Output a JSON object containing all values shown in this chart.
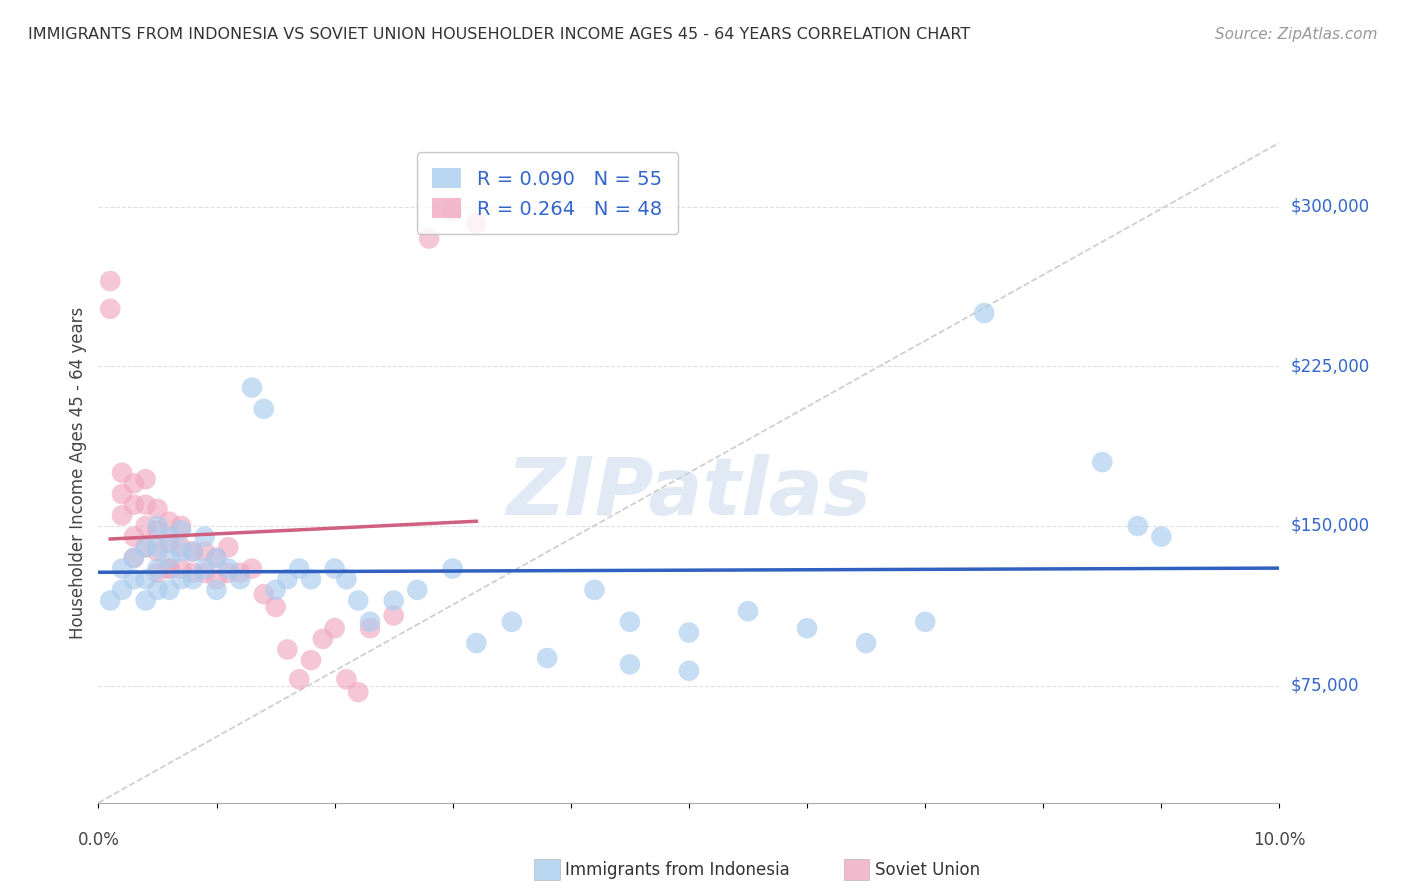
{
  "title": "IMMIGRANTS FROM INDONESIA VS SOVIET UNION HOUSEHOLDER INCOME AGES 45 - 64 YEARS CORRELATION CHART",
  "source": "Source: ZipAtlas.com",
  "ylabel": "Householder Income Ages 45 - 64 years",
  "xlim": [
    0.0,
    0.1
  ],
  "ylim": [
    20000,
    330000
  ],
  "ytick_positions": [
    75000,
    150000,
    225000,
    300000
  ],
  "ytick_labels": [
    "$75,000",
    "$150,000",
    "$225,000",
    "$300,000"
  ],
  "watermark": "ZIPatlas",
  "indonesia_color": "#aaccee",
  "soviet_color": "#f0a8c0",
  "indonesia_line_color": "#3060c0",
  "soviet_line_color": "#d06080",
  "text_color": "#3366cc",
  "background_color": "#ffffff",
  "grid_color": "#dddddd",
  "indonesia_x": [
    0.001,
    0.002,
    0.002,
    0.003,
    0.003,
    0.004,
    0.004,
    0.004,
    0.005,
    0.005,
    0.005,
    0.005,
    0.006,
    0.006,
    0.006,
    0.007,
    0.007,
    0.007,
    0.008,
    0.008,
    0.009,
    0.009,
    0.01,
    0.01,
    0.011,
    0.012,
    0.013,
    0.014,
    0.015,
    0.016,
    0.017,
    0.018,
    0.02,
    0.021,
    0.022,
    0.023,
    0.025,
    0.027,
    0.03,
    0.032,
    0.035,
    0.038,
    0.042,
    0.045,
    0.05,
    0.055,
    0.06,
    0.065,
    0.07,
    0.075,
    0.045,
    0.05,
    0.085,
    0.088,
    0.09
  ],
  "indonesia_y": [
    115000,
    120000,
    130000,
    125000,
    135000,
    115000,
    125000,
    140000,
    120000,
    130000,
    140000,
    150000,
    120000,
    135000,
    145000,
    125000,
    138000,
    148000,
    125000,
    138000,
    130000,
    145000,
    120000,
    135000,
    130000,
    125000,
    215000,
    205000,
    120000,
    125000,
    130000,
    125000,
    130000,
    125000,
    115000,
    105000,
    115000,
    120000,
    130000,
    95000,
    105000,
    88000,
    120000,
    105000,
    100000,
    110000,
    102000,
    95000,
    105000,
    250000,
    85000,
    82000,
    180000,
    150000,
    145000
  ],
  "soviet_x": [
    0.001,
    0.001,
    0.002,
    0.002,
    0.002,
    0.003,
    0.003,
    0.003,
    0.003,
    0.004,
    0.004,
    0.004,
    0.004,
    0.005,
    0.005,
    0.005,
    0.005,
    0.006,
    0.006,
    0.006,
    0.006,
    0.007,
    0.007,
    0.007,
    0.008,
    0.008,
    0.009,
    0.009,
    0.01,
    0.01,
    0.011,
    0.011,
    0.012,
    0.013,
    0.014,
    0.015,
    0.016,
    0.017,
    0.018,
    0.019,
    0.02,
    0.021,
    0.022,
    0.023,
    0.025,
    0.028,
    0.03,
    0.032
  ],
  "soviet_y": [
    265000,
    252000,
    155000,
    165000,
    175000,
    135000,
    145000,
    160000,
    170000,
    140000,
    150000,
    160000,
    172000,
    128000,
    138000,
    148000,
    158000,
    130000,
    142000,
    152000,
    130000,
    140000,
    150000,
    130000,
    128000,
    138000,
    128000,
    138000,
    125000,
    135000,
    128000,
    140000,
    128000,
    130000,
    118000,
    112000,
    92000,
    78000,
    87000,
    97000,
    102000,
    78000,
    72000,
    102000,
    108000,
    285000,
    298000,
    292000
  ]
}
